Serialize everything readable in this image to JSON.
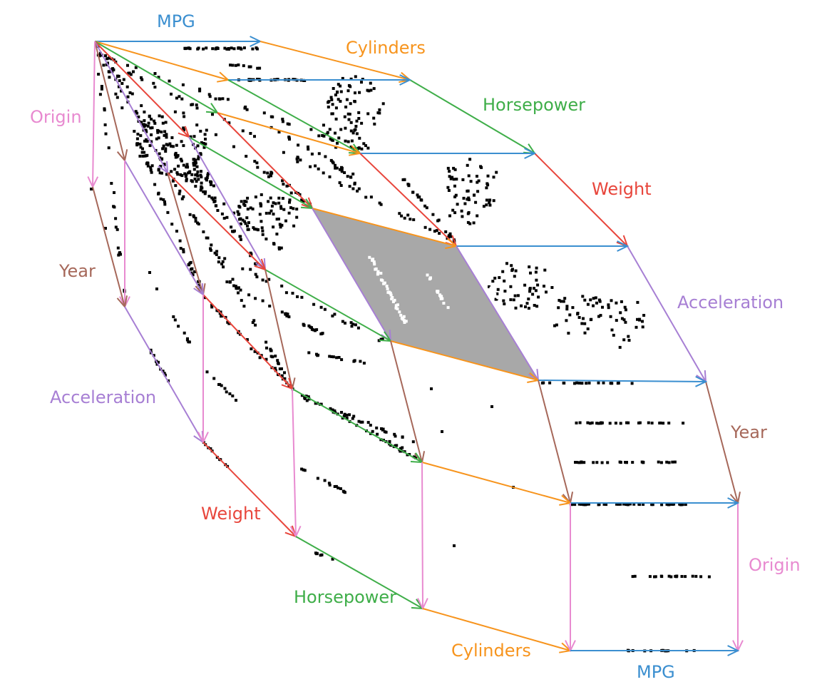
{
  "axis_labels": [
    {
      "key": "mpg_top",
      "text": "MPG",
      "color_key": "mpg"
    },
    {
      "key": "cylinders_top",
      "text": "Cylinders",
      "color_key": "cylinders"
    },
    {
      "key": "horsepower_top",
      "text": "Horsepower",
      "color_key": "horsepower"
    },
    {
      "key": "weight_top",
      "text": "Weight",
      "color_key": "weight"
    },
    {
      "key": "acceleration_right",
      "text": "Acceleration",
      "color_key": "acceleration"
    },
    {
      "key": "year_right",
      "text": "Year",
      "color_key": "year"
    },
    {
      "key": "origin_right",
      "text": "Origin",
      "color_key": "origin"
    },
    {
      "key": "mpg_bottom",
      "text": "MPG",
      "color_key": "mpg"
    },
    {
      "key": "cylinders_bottom",
      "text": "Cylinders",
      "color_key": "cylinders"
    },
    {
      "key": "horsepower_bottom",
      "text": "Horsepower",
      "color_key": "horsepower"
    },
    {
      "key": "weight_bottom",
      "text": "Weight",
      "color_key": "weight"
    },
    {
      "key": "acceleration_left",
      "text": "Acceleration",
      "color_key": "acceleration"
    },
    {
      "key": "year_left",
      "text": "Year",
      "color_key": "year"
    },
    {
      "key": "origin_left",
      "text": "Origin",
      "color_key": "origin"
    }
  ],
  "colors": {
    "mpg": "#3b8fd0",
    "cylinders": "#f7941d",
    "horsepower": "#3fae49",
    "weight": "#e8463c",
    "acceleration": "#a77fd4",
    "year": "#a6685a",
    "origin": "#e88ad0",
    "highlight_fill": "#a8a8a8",
    "points": "#000000",
    "highlight_points": "#ffffff"
  }
}
